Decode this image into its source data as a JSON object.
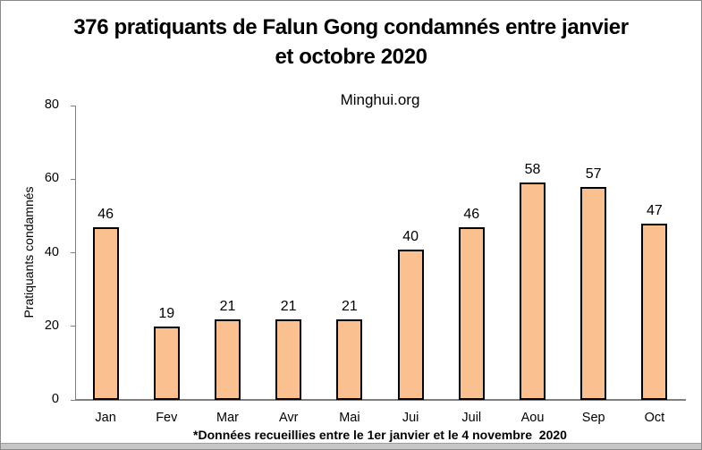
{
  "chart_data": {
    "type": "bar",
    "title": "376 pratiquants de Falun Gong condamnés entre janvier et octobre 2020",
    "title_lines": [
      "376 pratiquants de Falun Gong condamnés entre janvier",
      "et octobre 2020"
    ],
    "subtitle": "Minghui.org",
    "xlabel": "",
    "ylabel": "Pratiquants condamnés",
    "categories": [
      "Jan",
      "Fev",
      "Mar",
      "Avr",
      "Mai",
      "Jui",
      "Juil",
      "Aou",
      "Sep",
      "Oct"
    ],
    "values": [
      46,
      19,
      21,
      21,
      21,
      40,
      46,
      58,
      57,
      47
    ],
    "ylim": [
      0,
      80
    ],
    "yticks": [
      0,
      20,
      40,
      60,
      80
    ],
    "grid": false,
    "legend": "none",
    "data_labels": true,
    "bar_fill": "#FAC090",
    "bar_border": "#000000",
    "axis_color": "#808080",
    "footnote": "*Données recueillies entre le 1er janvier et le 4 novembre  2020"
  }
}
